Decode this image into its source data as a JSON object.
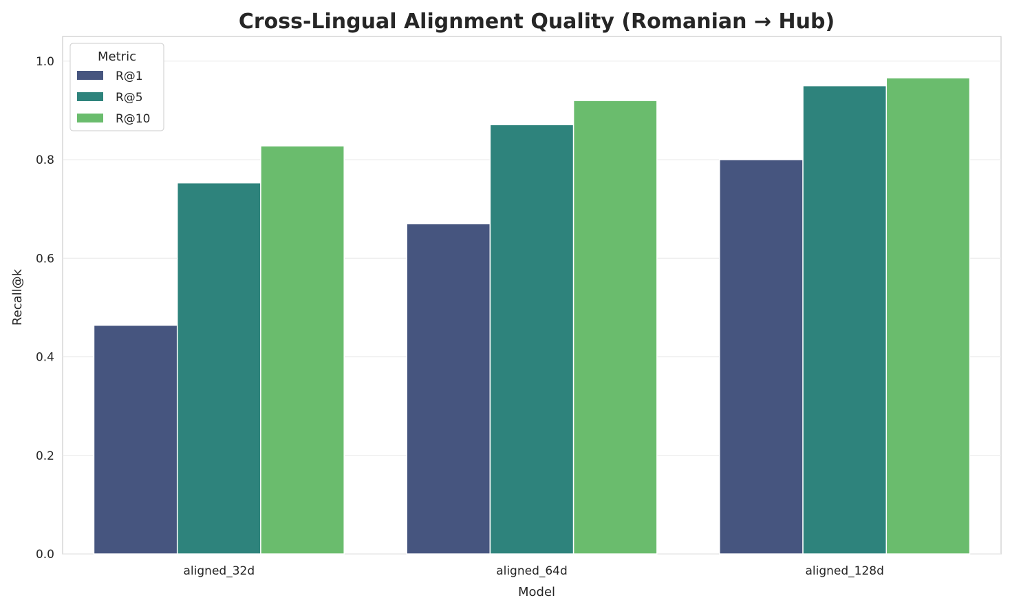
{
  "chart_data": {
    "type": "bar",
    "title": "Cross-Lingual Alignment Quality (Romanian → Hub)",
    "xlabel": "Model",
    "ylabel": "Recall@k",
    "categories": [
      "aligned_32d",
      "aligned_64d",
      "aligned_128d"
    ],
    "series": [
      {
        "name": "R@1",
        "color": "#46557f",
        "values": [
          0.464,
          0.67,
          0.8
        ]
      },
      {
        "name": "R@5",
        "color": "#2e837c",
        "values": [
          0.753,
          0.871,
          0.95
        ]
      },
      {
        "name": "R@10",
        "color": "#6abc6d",
        "values": [
          0.828,
          0.92,
          0.966
        ]
      }
    ],
    "ylim": [
      0,
      1.05
    ],
    "yticks": [
      "0.0",
      "0.2",
      "0.4",
      "0.6",
      "0.8",
      "1.0"
    ],
    "grid": true,
    "legend": {
      "title": "Metric",
      "placement": "top-left"
    }
  }
}
